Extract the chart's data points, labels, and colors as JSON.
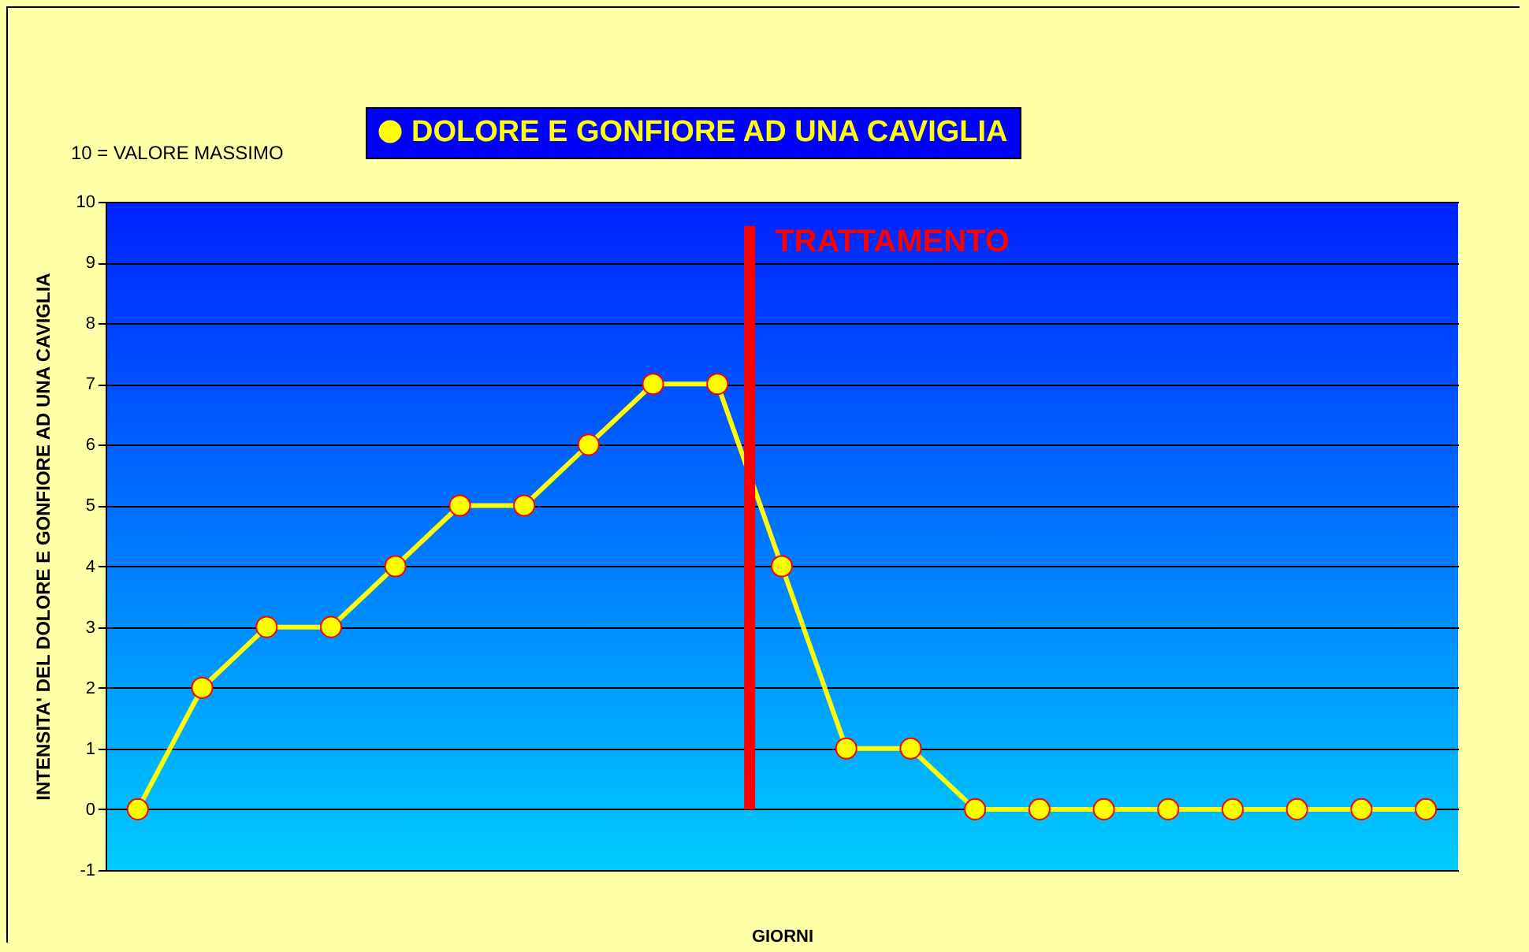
{
  "chart_data": {
    "type": "line",
    "xlabel": "GIORNI",
    "ylabel": "INTENSITA' DEL DOLORE  E GONFIORE AD UNA CAVIGLIA",
    "annotations": [
      "10 = VALORE MASSIMO",
      "TRATTAMENTO"
    ],
    "categories": [
      null,
      null,
      null,
      null,
      null,
      null,
      null,
      null,
      null,
      null,
      null,
      null,
      null,
      null,
      null,
      null,
      null,
      null,
      null,
      null,
      null
    ],
    "series": [
      {
        "name": "DOLORE E GONFIORE AD UNA CAVIGLIA",
        "color": "#ffff00",
        "values": [
          0,
          2,
          3,
          3,
          4,
          5,
          5,
          6,
          7,
          7,
          4,
          1,
          1,
          0,
          0,
          0,
          0,
          0,
          0,
          0,
          0
        ]
      }
    ],
    "ylim": [
      -1,
      10
    ],
    "yticks": [
      -1,
      0,
      1,
      2,
      3,
      4,
      5,
      6,
      7,
      8,
      9,
      10
    ],
    "grid": "y",
    "legend": "top",
    "marker": "circle",
    "line_style": "solid"
  }
}
